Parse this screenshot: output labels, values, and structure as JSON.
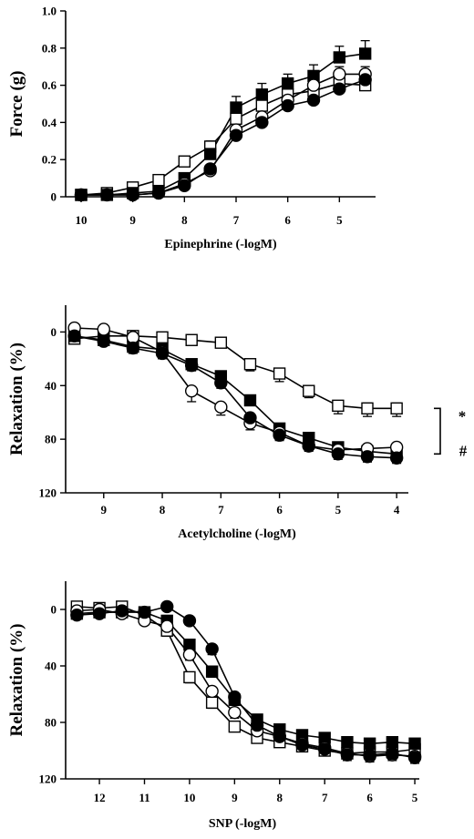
{
  "colors": {
    "ink": "#000000",
    "background": "#ffffff"
  },
  "markers": {
    "filled_square": "#000000",
    "open_square": "#ffffff",
    "filled_circle": "#000000",
    "open_circle": "#ffffff"
  },
  "chart_data": [
    {
      "type": "line",
      "xlabel": "Epinephrine (-logM)",
      "ylabel": "Force (g)",
      "xlim": [
        10.3,
        4.3
      ],
      "ylim": [
        0,
        1.0
      ],
      "x_ticks": [
        10,
        9,
        8,
        7,
        6,
        5
      ],
      "y_ticks": [
        0,
        0.2,
        0.4,
        0.6,
        0.8,
        1.0
      ],
      "y_tick_labels": [
        "0",
        "0.2",
        "0.4",
        "0.6",
        "0.8",
        "1.0"
      ],
      "x": [
        10,
        9.5,
        9,
        8.5,
        8,
        7.5,
        7,
        6.5,
        6,
        5.5,
        5,
        4.5
      ],
      "series": [
        {
          "marker": "open-square",
          "values": [
            0.01,
            0.02,
            0.05,
            0.09,
            0.19,
            0.27,
            0.42,
            0.49,
            0.55,
            0.57,
            0.61,
            0.6
          ],
          "errors": [
            0,
            0,
            0.01,
            0.01,
            0.02,
            0.03,
            0.04,
            0.04,
            0.04,
            0.04,
            0.04,
            0.04
          ]
        },
        {
          "marker": "filled-square",
          "values": [
            0.01,
            0.01,
            0.02,
            0.03,
            0.1,
            0.23,
            0.48,
            0.55,
            0.61,
            0.65,
            0.75,
            0.77
          ],
          "errors": [
            0,
            0,
            0.01,
            0.01,
            0.02,
            0.03,
            0.06,
            0.06,
            0.05,
            0.06,
            0.06,
            0.07
          ]
        },
        {
          "marker": "open-circle",
          "values": [
            0.01,
            0.01,
            0.01,
            0.02,
            0.07,
            0.14,
            0.36,
            0.43,
            0.52,
            0.6,
            0.66,
            0.66
          ],
          "errors": [
            0,
            0,
            0,
            0.01,
            0.02,
            0.02,
            0.04,
            0.04,
            0.04,
            0.04,
            0.04,
            0.04
          ]
        },
        {
          "marker": "filled-circle",
          "values": [
            0.01,
            0.01,
            0.01,
            0.02,
            0.06,
            0.15,
            0.33,
            0.4,
            0.49,
            0.52,
            0.58,
            0.63
          ],
          "errors": [
            0,
            0,
            0,
            0.01,
            0.01,
            0.02,
            0.03,
            0.03,
            0.03,
            0.03,
            0.03,
            0.03
          ]
        }
      ]
    },
    {
      "type": "line",
      "xlabel": "Acetylcholine (-logM)",
      "ylabel": "Relaxation (%)",
      "xlim": [
        9.65,
        3.8
      ],
      "ylim": [
        -20,
        120
      ],
      "y_inverted": true,
      "x_ticks": [
        9,
        8,
        7,
        6,
        5,
        4
      ],
      "y_ticks": [
        0,
        40,
        80,
        120
      ],
      "y_tick_labels": [
        "0",
        "40",
        "80",
        "120"
      ],
      "x": [
        9.5,
        9,
        8.5,
        8,
        7.5,
        7,
        6.5,
        6,
        5.5,
        5,
        4.5,
        4
      ],
      "annotations": [
        "*",
        "#"
      ],
      "series": [
        {
          "marker": "open-square",
          "values": [
            5,
            3,
            3,
            4,
            6,
            8,
            24,
            31,
            44,
            55,
            57,
            57
          ],
          "errors": [
            2,
            2,
            2,
            2,
            3,
            3,
            5,
            6,
            5,
            6,
            6,
            6
          ]
        },
        {
          "marker": "filled-square",
          "values": [
            3,
            6,
            11,
            13,
            24,
            33,
            51,
            72,
            79,
            86,
            89,
            91
          ],
          "errors": [
            2,
            3,
            3,
            4,
            4,
            4,
            4,
            4,
            4,
            4,
            4,
            4
          ]
        },
        {
          "marker": "open-circle",
          "values": [
            -3,
            -2,
            4,
            15,
            44,
            56,
            68,
            75,
            85,
            88,
            87,
            86
          ],
          "errors": [
            2,
            2,
            3,
            4,
            8,
            6,
            5,
            4,
            3,
            3,
            3,
            3
          ]
        },
        {
          "marker": "filled-circle",
          "values": [
            3,
            7,
            12,
            16,
            25,
            38,
            64,
            77,
            85,
            91,
            93,
            94
          ],
          "errors": [
            2,
            3,
            4,
            4,
            4,
            4,
            4,
            4,
            4,
            4,
            4,
            4
          ]
        }
      ]
    },
    {
      "type": "line",
      "xlabel": "SNP (-logM)",
      "ylabel": "Relaxation (%)",
      "xlim": [
        12.75,
        4.9
      ],
      "ylim": [
        -20,
        120
      ],
      "y_inverted": true,
      "x_ticks": [
        12,
        11,
        10,
        9,
        8,
        7,
        6,
        5
      ],
      "y_ticks": [
        0,
        40,
        80,
        120
      ],
      "y_tick_labels": [
        "0",
        "40",
        "80",
        "120"
      ],
      "x": [
        12.5,
        12,
        11.5,
        11,
        10.5,
        10,
        9.5,
        9,
        8.5,
        8,
        7.5,
        7,
        6.5,
        6,
        5.5,
        5
      ],
      "series": [
        {
          "marker": "open-square",
          "values": [
            -2,
            -1,
            -2,
            4,
            15,
            48,
            66,
            83,
            91,
            94,
            97,
            100,
            102,
            101,
            101,
            99
          ],
          "errors": [
            2,
            2,
            2,
            3,
            4,
            4,
            4,
            3,
            3,
            3,
            3,
            3,
            3,
            3,
            3,
            3
          ]
        },
        {
          "marker": "filled-square",
          "values": [
            3,
            2,
            2,
            2,
            8,
            25,
            44,
            64,
            78,
            85,
            89,
            91,
            94,
            95,
            94,
            95
          ],
          "errors": [
            2,
            2,
            2,
            2,
            3,
            4,
            4,
            4,
            3,
            3,
            3,
            3,
            3,
            3,
            3,
            3
          ]
        },
        {
          "marker": "open-circle",
          "values": [
            1,
            0,
            3,
            8,
            12,
            32,
            58,
            73,
            86,
            90,
            95,
            98,
            102,
            104,
            103,
            104
          ],
          "errors": [
            2,
            2,
            2,
            3,
            4,
            4,
            4,
            4,
            3,
            3,
            3,
            3,
            4,
            4,
            4,
            4
          ]
        },
        {
          "marker": "filled-circle",
          "values": [
            4,
            3,
            1,
            2,
            -2,
            8,
            28,
            62,
            82,
            90,
            96,
            99,
            103,
            103,
            102,
            105
          ],
          "errors": [
            2,
            2,
            2,
            2,
            2,
            3,
            4,
            4,
            3,
            3,
            3,
            3,
            4,
            4,
            4,
            4
          ]
        }
      ]
    }
  ]
}
